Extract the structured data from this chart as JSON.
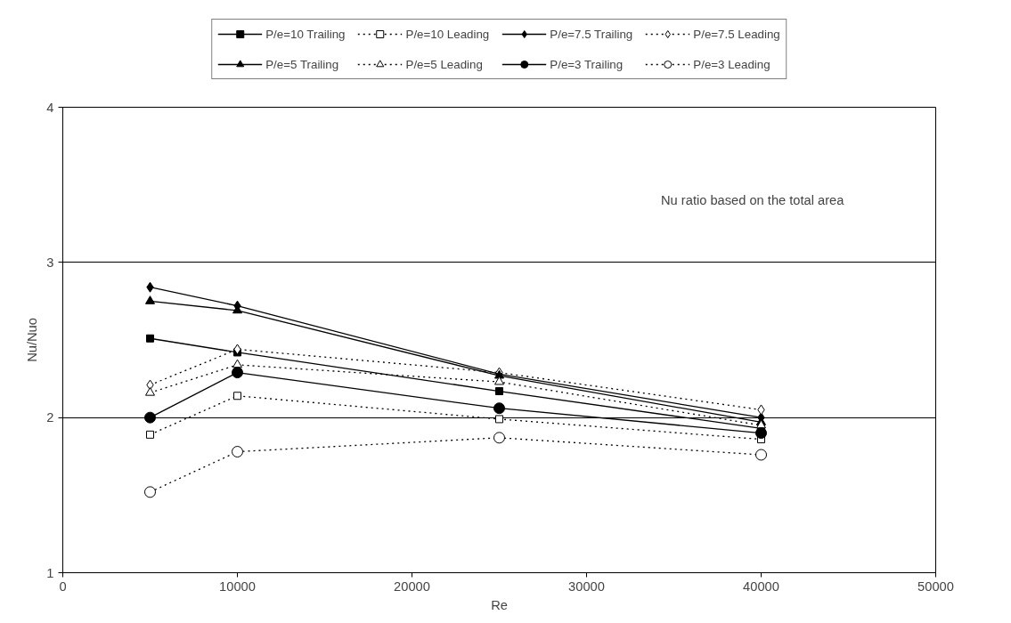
{
  "chart_data": {
    "type": "line",
    "xlabel": "Re",
    "ylabel": "Nu/Nuo",
    "x": [
      5000,
      10000,
      25000,
      40000
    ],
    "xlim": [
      0,
      50000
    ],
    "xticks": [
      0,
      10000,
      20000,
      30000,
      40000,
      50000
    ],
    "ylim": [
      1,
      4
    ],
    "yticks": [
      1,
      2,
      3,
      4
    ],
    "grid": "y",
    "legend": "top",
    "annotations": [
      "Nu ratio based on the total area"
    ],
    "series": [
      {
        "name": "P/e=10 Trailing",
        "color": "#000000",
        "marker": "square",
        "line_style": "solid",
        "values": [
          2.51,
          2.42,
          2.17,
          1.93
        ]
      },
      {
        "name": "P/e=10 Leading",
        "color": "#000000",
        "marker": "square",
        "line_style": "dotted",
        "values": [
          1.89,
          2.14,
          1.99,
          1.86
        ]
      },
      {
        "name": "P/e=7.5 Trailing",
        "color": "#000000",
        "marker": "diamond",
        "line_style": "solid",
        "values": [
          2.84,
          2.72,
          2.28,
          2.0
        ]
      },
      {
        "name": "P/e=7.5 Leading",
        "color": "#000000",
        "marker": "diamond",
        "line_style": "dotted",
        "values": [
          2.21,
          2.44,
          2.29,
          2.05
        ]
      },
      {
        "name": "P/e=5 Trailing",
        "color": "#000000",
        "marker": "triangle",
        "line_style": "solid",
        "values": [
          2.75,
          2.69,
          2.27,
          1.97
        ]
      },
      {
        "name": "P/e=5 Leading",
        "color": "#000000",
        "marker": "triangle",
        "line_style": "dotted",
        "values": [
          2.16,
          2.34,
          2.23,
          1.95
        ]
      },
      {
        "name": "P/e=3 Trailing",
        "color": "#000000",
        "marker": "circle",
        "line_style": "solid",
        "values": [
          2.0,
          2.29,
          2.06,
          1.9
        ]
      },
      {
        "name": "P/e=3 Leading",
        "color": "#000000",
        "marker": "circle",
        "line_style": "dotted",
        "values": [
          1.52,
          1.78,
          1.87,
          1.76
        ]
      }
    ]
  }
}
